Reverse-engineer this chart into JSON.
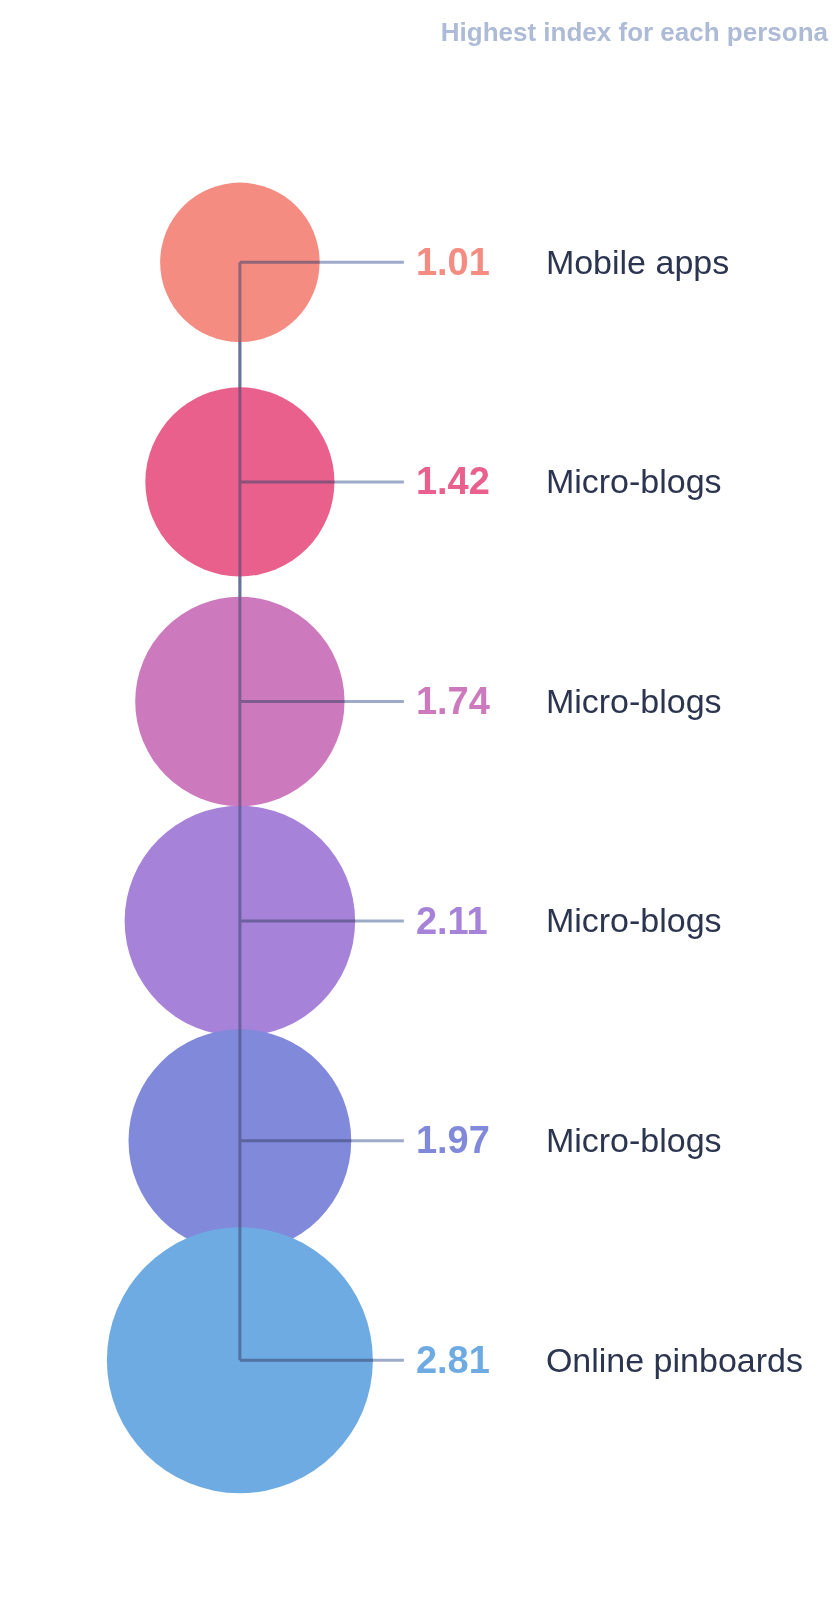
{
  "chart_data": {
    "type": "other",
    "title": "Highest index for each persona",
    "categories": [
      "Mobile apps",
      "Micro-blogs",
      "Micro-blogs",
      "Micro-blogs",
      "Micro-blogs",
      "Online pinboards"
    ],
    "values": [
      1.01,
      1.42,
      1.74,
      2.11,
      1.97,
      2.81
    ],
    "colors": [
      "#f58c82",
      "#e9608c",
      "#cd79bd",
      "#a682d9",
      "#8189db",
      "#6eabe2"
    ],
    "data_labels": true
  }
}
